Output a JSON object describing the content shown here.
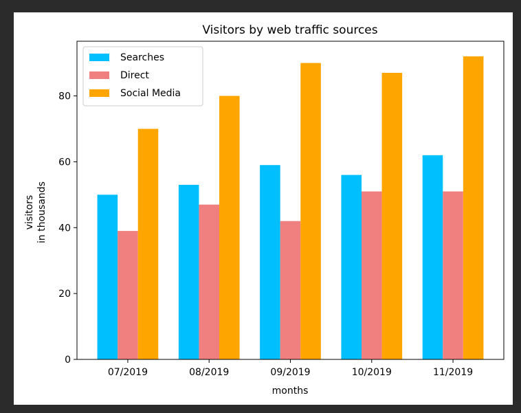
{
  "chart_data": {
    "type": "bar",
    "title": "Visitors by web traffic sources",
    "xlabel": "months",
    "ylabel": [
      "visitors",
      "in thousands"
    ],
    "categories": [
      "07/2019",
      "08/2019",
      "09/2019",
      "10/2019",
      "11/2019"
    ],
    "series": [
      {
        "name": "Searches",
        "color": "#00bfff",
        "values": [
          50,
          53,
          59,
          56,
          62
        ]
      },
      {
        "name": "Direct",
        "color": "#f08080",
        "values": [
          39,
          47,
          42,
          51,
          51
        ]
      },
      {
        "name": "Social Media",
        "color": "#ffa500",
        "values": [
          70,
          80,
          90,
          87,
          92
        ]
      }
    ],
    "ylim": [
      0,
      96.6
    ],
    "yticks": [
      0,
      20,
      40,
      60,
      80
    ],
    "grid": false,
    "legend_position": "top-left"
  }
}
